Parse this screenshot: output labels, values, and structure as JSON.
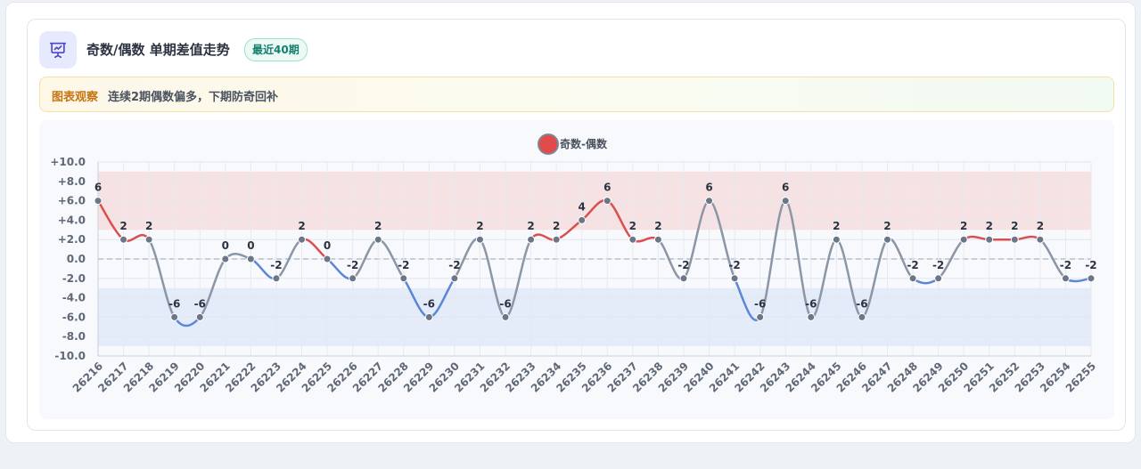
{
  "header": {
    "title": "奇数/偶数 单期差值走势",
    "badge": "最近40期",
    "icon": "presentation-chart-icon"
  },
  "note": {
    "tag": "图表观察",
    "text": "连续2期偶数偏多，下期防奇回补"
  },
  "chart_data": {
    "type": "line",
    "title": "",
    "legend": {
      "label": "奇数-偶数",
      "position": "top-center"
    },
    "xlabel": "",
    "ylabel": "",
    "ylim": [
      -10,
      10
    ],
    "yticks": [
      "+10.0",
      "+8.0",
      "+6.0",
      "+4.0",
      "+2.0",
      "0.0",
      "-2.0",
      "-4.0",
      "-6.0",
      "-8.0",
      "-10.0"
    ],
    "grid": true,
    "bands": [
      {
        "from": 3,
        "to": 9,
        "color": "#f5dada"
      },
      {
        "from": -9,
        "to": -3,
        "color": "#dde6f8"
      }
    ],
    "zero_line": true,
    "colors": {
      "positive": "#d95050",
      "negative": "#5b87d6",
      "neutral": "#8b96a6",
      "legend": "#e14b4b"
    },
    "categories": [
      "26216",
      "26217",
      "26218",
      "26219",
      "26220",
      "26221",
      "26222",
      "26223",
      "26224",
      "26225",
      "26226",
      "26227",
      "26228",
      "26229",
      "26230",
      "26231",
      "26232",
      "26233",
      "26234",
      "26235",
      "26236",
      "26237",
      "26238",
      "26239",
      "26240",
      "26241",
      "26242",
      "26243",
      "26244",
      "26245",
      "26246",
      "26247",
      "26248",
      "26249",
      "26250",
      "26251",
      "26252",
      "26253",
      "26254",
      "26255"
    ],
    "series": [
      {
        "name": "奇数-偶数",
        "values": [
          6,
          2,
          2,
          -6,
          -6,
          0,
          0,
          -2,
          2,
          0,
          -2,
          2,
          -2,
          -6,
          -2,
          2,
          -6,
          2,
          2,
          4,
          6,
          2,
          2,
          -2,
          6,
          -2,
          -6,
          6,
          -6,
          2,
          -6,
          2,
          -2,
          -2,
          2,
          2,
          2,
          2,
          -2,
          -2
        ]
      }
    ]
  }
}
